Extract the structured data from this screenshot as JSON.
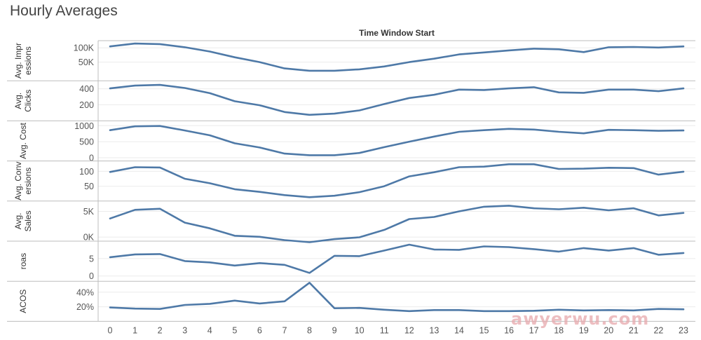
{
  "title": "Hourly Averages",
  "column_header": "Time Window Start",
  "watermark": "awyerwu.com",
  "colors": {
    "line": "#4e79a7",
    "grid": "#ebebeb",
    "panel_border": "#bdbdbd",
    "text": "#555555"
  },
  "chart_data": {
    "type": "line",
    "x": [
      0,
      1,
      2,
      3,
      4,
      5,
      6,
      7,
      8,
      9,
      10,
      11,
      12,
      13,
      14,
      15,
      16,
      17,
      18,
      19,
      20,
      21,
      22,
      23
    ],
    "grid": true,
    "panels": [
      {
        "label_lines": [
          "Avg. Impr",
          "essions"
        ],
        "ylim": [
          -15000,
          125000
        ],
        "ticks": [
          50000,
          100000
        ],
        "tick_labels": [
          "50K",
          "100K"
        ],
        "values": [
          105000,
          115000,
          113000,
          102000,
          87000,
          67000,
          50000,
          28000,
          20000,
          20000,
          25000,
          35000,
          50000,
          62000,
          77000,
          84000,
          91000,
          97000,
          95000,
          85000,
          102000,
          103000,
          101000,
          105000
        ]
      },
      {
        "label_lines": [
          "Avg.",
          "Clicks"
        ],
        "ylim": [
          0,
          500
        ],
        "ticks": [
          200,
          400
        ],
        "tick_labels": [
          "200",
          "400"
        ],
        "values": [
          405,
          440,
          448,
          410,
          345,
          245,
          195,
          110,
          75,
          90,
          130,
          210,
          285,
          325,
          390,
          385,
          405,
          420,
          355,
          350,
          390,
          390,
          370,
          405
        ]
      },
      {
        "label_lines": [
          "Avg. Cost"
        ],
        "ylim": [
          -100,
          1150
        ],
        "ticks": [
          0,
          500,
          1000
        ],
        "tick_labels": [
          "0",
          "500",
          "1000"
        ],
        "values": [
          860,
          980,
          990,
          850,
          700,
          450,
          320,
          130,
          80,
          80,
          150,
          330,
          500,
          660,
          810,
          860,
          900,
          880,
          810,
          760,
          870,
          860,
          840,
          850
        ]
      },
      {
        "label_lines": [
          "Avg. Conv",
          "ersions"
        ],
        "ylim": [
          0,
          135
        ],
        "ticks": [
          50,
          100
        ],
        "tick_labels": [
          "50",
          "100"
        ],
        "values": [
          98,
          114,
          113,
          75,
          60,
          40,
          31,
          20,
          13,
          18,
          30,
          50,
          83,
          97,
          114,
          116,
          124,
          124,
          108,
          109,
          112,
          111,
          89,
          99
        ]
      },
      {
        "label_lines": [
          "Avg.",
          "Sales"
        ],
        "ylim": [
          -800,
          7000
        ],
        "ticks": [
          0,
          5000
        ],
        "tick_labels": [
          "0K",
          "5K"
        ],
        "values": [
          3600,
          5300,
          5500,
          2800,
          1700,
          250,
          50,
          -600,
          -1000,
          -400,
          -50,
          1400,
          3500,
          3900,
          5000,
          5900,
          6100,
          5600,
          5400,
          5700,
          5200,
          5600,
          4200,
          4700
        ]
      },
      {
        "label_lines": [
          "roas"
        ],
        "ylim": [
          -1.5,
          10
        ],
        "ticks": [
          0,
          5
        ],
        "tick_labels": [
          "0",
          "5"
        ],
        "values": [
          5.4,
          6.2,
          6.3,
          4.3,
          3.9,
          3.0,
          3.7,
          3.2,
          0.9,
          5.8,
          5.7,
          7.3,
          9.0,
          7.6,
          7.5,
          8.5,
          8.3,
          7.7,
          7.0,
          8.0,
          7.3,
          8.0,
          6.1,
          6.6
        ]
      },
      {
        "label_lines": [
          "ACOS"
        ],
        "ylim": [
          0.0,
          0.55
        ],
        "ticks": [
          0.2,
          0.4
        ],
        "tick_labels": [
          "20%",
          "40%"
        ],
        "values": [
          0.19,
          0.175,
          0.17,
          0.225,
          0.24,
          0.285,
          0.245,
          0.275,
          0.53,
          0.18,
          0.185,
          0.16,
          0.14,
          0.155,
          0.155,
          0.14,
          0.14,
          0.145,
          0.16,
          0.15,
          0.155,
          0.15,
          0.17,
          0.165
        ]
      }
    ]
  }
}
